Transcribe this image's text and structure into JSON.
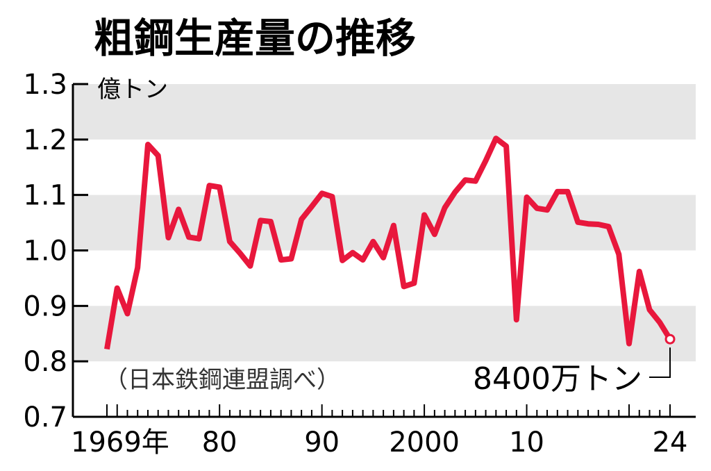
{
  "chart_data": {
    "type": "line",
    "title": "粗鋼生産量の推移",
    "ylabel": "億トン",
    "source_note": "（日本鉄鋼連盟調べ）",
    "ylim": [
      0.7,
      1.3
    ],
    "xlim": [
      1969,
      2024
    ],
    "y_ticks": [
      "1.3",
      "1.2",
      "1.1",
      "1.0",
      "0.9",
      "0.8",
      "0.7"
    ],
    "x_tick_labels": [
      {
        "year": 1969,
        "label": "1969年"
      },
      {
        "year": 1980,
        "label": "80"
      },
      {
        "year": 1990,
        "label": "90"
      },
      {
        "year": 2000,
        "label": "2000"
      },
      {
        "year": 2010,
        "label": "10"
      },
      {
        "year": 2024,
        "label": "24"
      }
    ],
    "bands": "alternating-gray",
    "line_color": "#E8173C",
    "series": [
      {
        "x": [
          1969,
          1970,
          1971,
          1972,
          1973,
          1974,
          1975,
          1976,
          1977,
          1978,
          1979,
          1980,
          1981,
          1982,
          1983,
          1984,
          1985,
          1986,
          1987,
          1988,
          1989,
          1990,
          1991,
          1992,
          1993,
          1994,
          1995,
          1996,
          1997,
          1998,
          1999,
          2000,
          2001,
          2002,
          2003,
          2004,
          2005,
          2006,
          2007,
          2008,
          2009,
          2010,
          2011,
          2012,
          2013,
          2014,
          2015,
          2016,
          2017,
          2018,
          2019,
          2020,
          2021,
          2022,
          2023,
          2024
        ],
        "values": [
          0.822,
          0.932,
          0.886,
          0.969,
          1.191,
          1.171,
          1.023,
          1.074,
          1.024,
          1.021,
          1.117,
          1.114,
          1.016,
          0.995,
          0.972,
          1.054,
          1.052,
          0.983,
          0.985,
          1.056,
          1.079,
          1.103,
          1.097,
          0.982,
          0.996,
          0.983,
          1.016,
          0.987,
          1.045,
          0.935,
          0.941,
          1.064,
          1.029,
          1.077,
          1.105,
          1.127,
          1.125,
          1.162,
          1.202,
          1.188,
          0.875,
          1.096,
          1.076,
          1.073,
          1.106,
          1.106,
          1.051,
          1.048,
          1.047,
          1.043,
          0.993,
          0.832,
          0.962,
          0.893,
          0.87,
          0.84
        ]
      }
    ],
    "callout": {
      "label": "8400万トン",
      "year": 2024,
      "value": 0.84
    }
  }
}
